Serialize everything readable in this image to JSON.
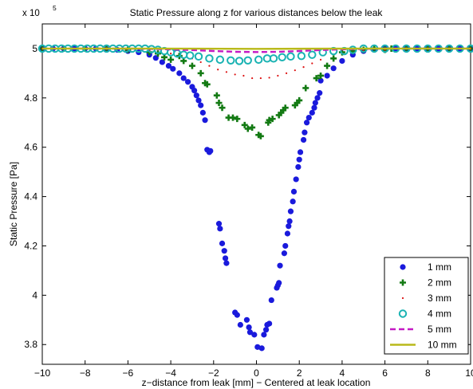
{
  "chart_data": {
    "type": "scatter",
    "title": "Static Pressure along z for various distances below the leak",
    "xlabel": "z−distance from leak [mm] − Centered at leak location",
    "ylabel": "Static Pressure [Pa]",
    "y_multiplier": "x 10",
    "y_multiplier_exp": "5",
    "xlim": [
      -10,
      10
    ],
    "ylim": [
      3.72,
      5.1
    ],
    "xticks": [
      -10,
      -8,
      -6,
      -4,
      -2,
      0,
      2,
      4,
      6,
      8,
      10
    ],
    "xtick_labels": [
      "−10",
      "−8",
      "−6",
      "−4",
      "−2",
      "0",
      "2",
      "4",
      "6",
      "8",
      "10"
    ],
    "yticks": [
      3.8,
      4,
      4.2,
      4.4,
      4.6,
      4.8,
      5
    ],
    "ytick_labels": [
      "3.8",
      "4",
      "4.2",
      "4.4",
      "4.6",
      "4.8",
      "5"
    ],
    "grid": false,
    "legend_position": "bottom-right",
    "series": [
      {
        "name": "1 mm",
        "marker": "filled-circle",
        "color": "#1a1adc",
        "x": [
          -10,
          -9.5,
          -9,
          -8.5,
          -8,
          -7.5,
          -7,
          -6.5,
          -6,
          -5.5,
          -5,
          -4.7,
          -4.4,
          -4.1,
          -3.9,
          -3.6,
          -3.4,
          -3.2,
          -3.0,
          -2.9,
          -2.8,
          -2.7,
          -2.6,
          -2.5,
          -2.4,
          -2.3,
          -2.2,
          -2.15,
          -1.75,
          -1.7,
          -1.6,
          -1.5,
          -1.45,
          -1.4,
          -1.0,
          -0.9,
          -0.75,
          -0.45,
          -0.35,
          -0.3,
          -0.1,
          0.05,
          0.25,
          0.35,
          0.45,
          0.5,
          0.6,
          0.7,
          0.95,
          1.0,
          1.05,
          1.1,
          1.3,
          1.35,
          1.45,
          1.5,
          1.55,
          1.6,
          1.7,
          1.75,
          1.85,
          1.95,
          2.0,
          2.05,
          2.2,
          2.25,
          2.35,
          2.45,
          2.6,
          2.7,
          2.75,
          2.85,
          2.95,
          3.0,
          3.3,
          3.6,
          4.0,
          4.5,
          5,
          5.5,
          6,
          6.5,
          7,
          7.5,
          8,
          8.5,
          9,
          9.5,
          10
        ],
        "y": [
          5.0,
          5.0,
          5.0,
          5.0,
          5.0,
          5.0,
          4.998,
          4.995,
          4.99,
          4.985,
          4.975,
          4.962,
          4.945,
          4.93,
          4.918,
          4.9,
          4.88,
          4.865,
          4.845,
          4.83,
          4.81,
          4.79,
          4.77,
          4.74,
          4.71,
          4.59,
          4.58,
          4.585,
          4.29,
          4.27,
          4.21,
          4.18,
          4.15,
          4.13,
          3.93,
          3.92,
          3.88,
          3.9,
          3.87,
          3.85,
          3.84,
          3.79,
          3.785,
          3.84,
          3.86,
          3.88,
          3.885,
          3.98,
          4.03,
          4.04,
          4.05,
          4.12,
          4.17,
          4.2,
          4.25,
          4.28,
          4.3,
          4.34,
          4.38,
          4.42,
          4.47,
          4.52,
          4.55,
          4.58,
          4.63,
          4.66,
          4.7,
          4.72,
          4.74,
          4.76,
          4.78,
          4.8,
          4.82,
          4.87,
          4.89,
          4.92,
          4.95,
          4.975,
          4.99,
          4.995,
          5.0,
          5.0,
          5.0,
          5.0,
          5.0,
          5.0,
          5.0,
          5.0,
          5.0
        ]
      },
      {
        "name": "2 mm",
        "marker": "plus",
        "color": "#137a13",
        "x": [
          -10,
          -9,
          -8,
          -7,
          -6,
          -5,
          -4.6,
          -4.3,
          -4.0,
          -3.6,
          -3.4,
          -3.0,
          -2.6,
          -2.4,
          -2.3,
          -1.85,
          -1.75,
          -1.6,
          -1.3,
          -1.1,
          -0.9,
          -0.55,
          -0.4,
          -0.2,
          0.1,
          0.2,
          0.55,
          0.6,
          0.75,
          1.05,
          1.15,
          1.25,
          1.35,
          1.8,
          1.9,
          2.0,
          2.3,
          2.8,
          3.0,
          3.3,
          3.6,
          4.0,
          4.5,
          5.0,
          5.5,
          6.0,
          6.3,
          7.0,
          8.0,
          9.0,
          10.0
        ],
        "y": [
          5.0,
          5.0,
          5.0,
          5.0,
          4.995,
          4.985,
          4.98,
          4.965,
          4.955,
          4.97,
          4.95,
          4.93,
          4.9,
          4.86,
          4.855,
          4.81,
          4.78,
          4.76,
          4.72,
          4.72,
          4.715,
          4.69,
          4.675,
          4.68,
          4.65,
          4.645,
          4.7,
          4.71,
          4.715,
          4.73,
          4.74,
          4.75,
          4.76,
          4.77,
          4.78,
          4.79,
          4.84,
          4.88,
          4.89,
          4.93,
          4.96,
          4.985,
          4.99,
          4.995,
          5.0,
          4.995,
          5.0,
          5.0,
          5.0,
          5.0,
          5.0
        ]
      },
      {
        "name": "3 mm",
        "marker": "point",
        "color": "#dd1111",
        "x": [
          -10,
          -9,
          -8,
          -7,
          -6,
          -5,
          -4,
          -3,
          -2.6,
          -2.2,
          -1.8,
          -1.4,
          -1.0,
          -0.6,
          -0.2,
          0.2,
          0.6,
          1.0,
          1.4,
          1.8,
          2.2,
          2.6,
          3,
          4,
          5,
          6,
          7,
          8,
          9,
          10
        ],
        "y": [
          5.0,
          5.0,
          5.0,
          4.998,
          4.995,
          4.99,
          4.98,
          4.96,
          4.945,
          4.93,
          4.915,
          4.905,
          4.895,
          4.89,
          4.88,
          4.88,
          4.882,
          4.89,
          4.9,
          4.912,
          4.925,
          4.94,
          4.955,
          4.98,
          4.99,
          4.995,
          5.0,
          5.0,
          5.0,
          5.0
        ]
      },
      {
        "name": "4 mm",
        "marker": "open-circle",
        "color": "#1ab3b3",
        "x": [
          -10,
          -9.7,
          -9.4,
          -9.1,
          -8.8,
          -8.5,
          -8.2,
          -7.9,
          -7.6,
          -7.3,
          -7.0,
          -6.7,
          -6.4,
          -6.1,
          -5.8,
          -5.5,
          -5.2,
          -4.9,
          -4.6,
          -4.3,
          -4.0,
          -3.7,
          -3.4,
          -3.1,
          -2.7,
          -2.2,
          -1.7,
          -1.2,
          -0.8,
          -0.4,
          0.1,
          0.5,
          0.8,
          1.2,
          1.6,
          2.1,
          2.6,
          3.1,
          3.6,
          4.1,
          4.5,
          5.0,
          5.5,
          6.0,
          6.5,
          7.0,
          7.5,
          8.0,
          8.5,
          9.0,
          9.5,
          10.0
        ],
        "y": [
          5.0,
          5.0,
          5.0,
          5.0,
          5.0,
          5.0,
          5.0,
          5.0,
          5.0,
          5.0,
          5.0,
          5.0,
          5.0,
          5.0,
          5.0,
          5.0,
          5.0,
          4.998,
          4.995,
          4.99,
          4.985,
          4.98,
          4.975,
          4.972,
          4.968,
          4.96,
          4.955,
          4.952,
          4.95,
          4.952,
          4.955,
          4.96,
          4.96,
          4.965,
          4.968,
          4.97,
          4.975,
          4.985,
          4.99,
          4.99,
          4.995,
          5.0,
          5.0,
          5.0,
          5.0,
          5.0,
          5.0,
          5.0,
          5.0,
          5.0,
          5.0,
          5.0
        ]
      },
      {
        "name": "5 mm",
        "marker": "dashed-line",
        "color": "#c41ac4",
        "x": [
          -10,
          -8,
          -6,
          -4,
          -3,
          -2,
          -1,
          0,
          1,
          2,
          3,
          4,
          6,
          8,
          10
        ],
        "y": [
          5.0,
          5.0,
          5.0,
          4.997,
          4.994,
          4.99,
          4.987,
          4.986,
          4.987,
          4.99,
          4.994,
          4.997,
          5.0,
          5.0,
          5.0
        ]
      },
      {
        "name": "10 mm",
        "marker": "solid-line",
        "color": "#b9b91a",
        "x": [
          -10,
          -5,
          0,
          5,
          10
        ],
        "y": [
          5.0,
          5.0,
          4.999,
          5.0,
          5.0
        ]
      }
    ]
  }
}
